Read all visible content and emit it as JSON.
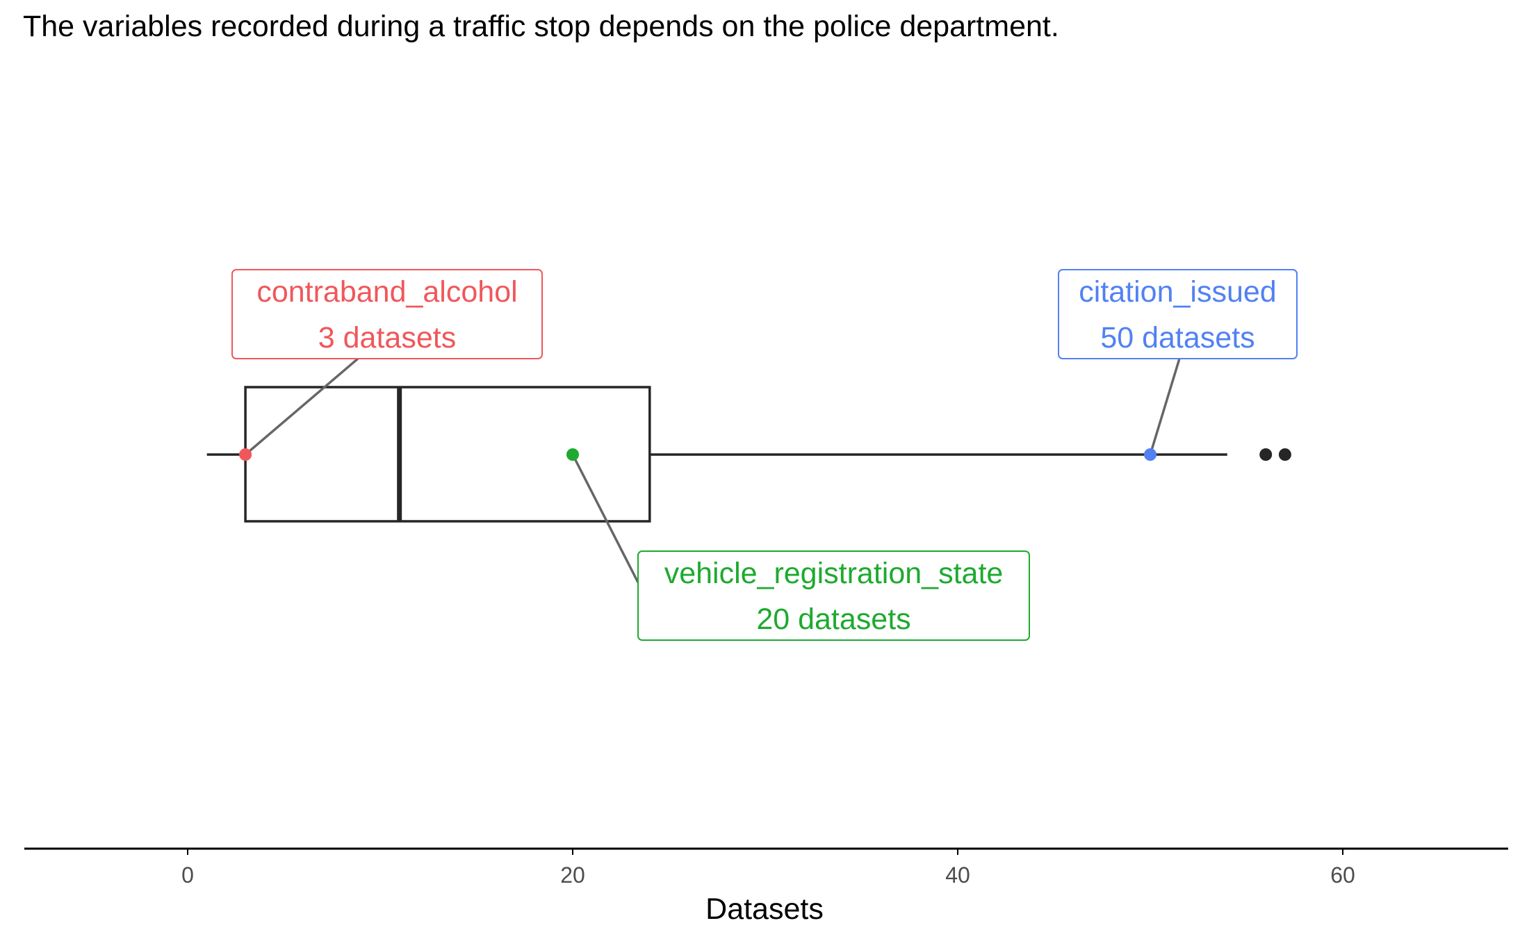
{
  "chart_data": {
    "type": "boxplot",
    "title": "The variables recorded during a traffic stop depends on the police department.",
    "xlabel": "Datasets",
    "xlim": [
      -8.5,
      69
    ],
    "x_ticks": [
      0,
      20,
      40,
      60
    ],
    "x_tick_labels": [
      "0",
      "20",
      "40",
      "60"
    ],
    "grid": false,
    "box": {
      "whisker_low": 1,
      "q1": 3,
      "median": 11,
      "q3": 24,
      "whisker_high": 54,
      "outliers": [
        56,
        57
      ]
    },
    "highlights": [
      {
        "name": "contraband_alcohol",
        "value": 3,
        "label_line1": "contraband_alcohol",
        "label_line2": "3 datasets",
        "color": "#F0575A"
      },
      {
        "name": "vehicle_registration_state",
        "value": 20,
        "label_line1": "vehicle_registration_state",
        "label_line2": "20 datasets",
        "color": "#1DAA2F"
      },
      {
        "name": "citation_issued",
        "value": 50,
        "label_line1": "citation_issued",
        "label_line2": "50 datasets",
        "color": "#5181F2"
      }
    ],
    "colors": {
      "box": "#262626",
      "outlier": "#262626",
      "connector": "#666666",
      "axis": "#000000"
    }
  }
}
